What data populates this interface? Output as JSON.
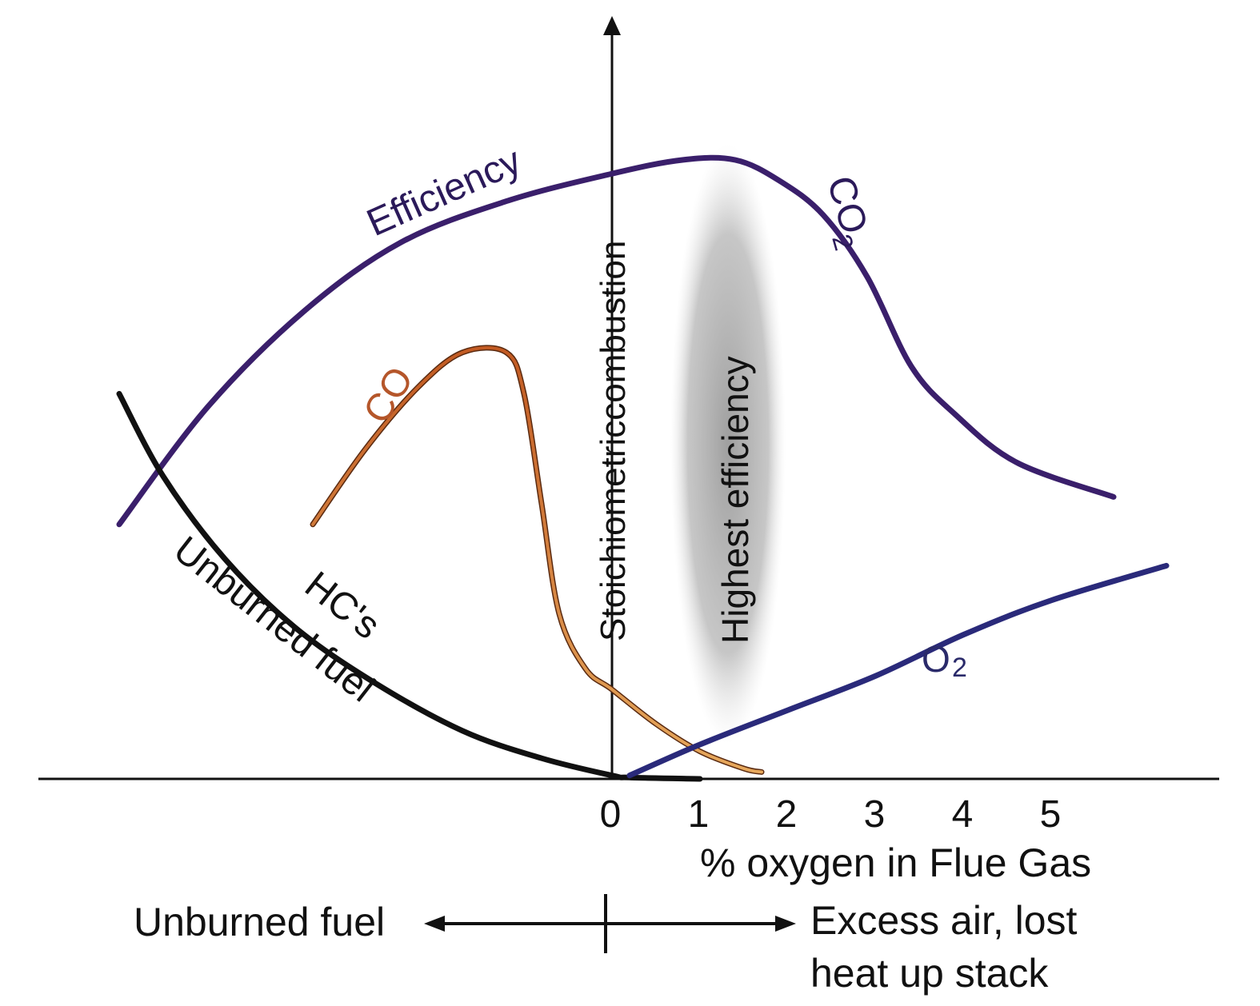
{
  "chart_data": {
    "type": "line",
    "title": "",
    "xlabel": "% oxygen in Flue Gas",
    "ylabel": "",
    "x_ticks": [
      "0",
      "1",
      "2",
      "3",
      "4",
      "5"
    ],
    "xlim": [
      -6.5,
      6.9
    ],
    "ylim": [
      0,
      100
    ],
    "grid": false,
    "legend": "none",
    "series": [
      {
        "name": "Efficiency",
        "color": "#3a1f6b",
        "points": [
          [
            -5.6,
            37
          ],
          [
            -4.6,
            54
          ],
          [
            -3.5,
            68
          ],
          [
            -2.4,
            78
          ],
          [
            -1.2,
            84
          ],
          [
            0,
            88
          ],
          [
            0.8,
            90
          ],
          [
            1.4,
            90
          ],
          [
            1.9,
            87
          ],
          [
            2.4,
            82
          ],
          [
            2.9,
            73
          ],
          [
            3.4,
            60
          ],
          [
            3.9,
            53
          ],
          [
            4.6,
            46
          ],
          [
            5.7,
            41
          ]
        ]
      },
      {
        "name": "CO",
        "color": "#c96a2a",
        "points": [
          [
            -3.4,
            37
          ],
          [
            -2.8,
            48
          ],
          [
            -2.2,
            57
          ],
          [
            -1.7,
            62
          ],
          [
            -1.2,
            62
          ],
          [
            -1.0,
            56
          ],
          [
            -0.8,
            40
          ],
          [
            -0.6,
            24
          ],
          [
            -0.3,
            16
          ],
          [
            0,
            13
          ],
          [
            0.5,
            8
          ],
          [
            1.0,
            4
          ],
          [
            1.5,
            1.5
          ],
          [
            1.7,
            1
          ]
        ]
      },
      {
        "name": "HC's",
        "color": "#111111",
        "points": [
          [
            -5.6,
            56
          ],
          [
            -5.1,
            44
          ],
          [
            -4.4,
            32
          ],
          [
            -3.6,
            22
          ],
          [
            -2.7,
            14
          ],
          [
            -1.7,
            7
          ],
          [
            -0.8,
            3
          ],
          [
            0,
            0.5
          ],
          [
            0.2,
            0.2
          ],
          [
            1.0,
            0
          ]
        ]
      },
      {
        "name": "O2",
        "color": "#2a2a7a",
        "points": [
          [
            0.2,
            0.5
          ],
          [
            1.0,
            5
          ],
          [
            2.0,
            10
          ],
          [
            3.0,
            15
          ],
          [
            4.0,
            21
          ],
          [
            5.0,
            26
          ],
          [
            6.3,
            31
          ]
        ]
      }
    ],
    "annotations": {
      "efficiency": "Efficiency",
      "co2": "CO",
      "co2_sub": "2",
      "co": "CO",
      "hcs": "HC's",
      "unburned_curve": "Unburned fuel",
      "o2": "O",
      "o2_sub": "2",
      "stoich": "Stoichiometriccombustion",
      "highest": "Highest efficiency",
      "bottom_left": "Unburned fuel",
      "bottom_right_1": "Excess air, lost",
      "bottom_right_2": "heat up stack"
    }
  }
}
